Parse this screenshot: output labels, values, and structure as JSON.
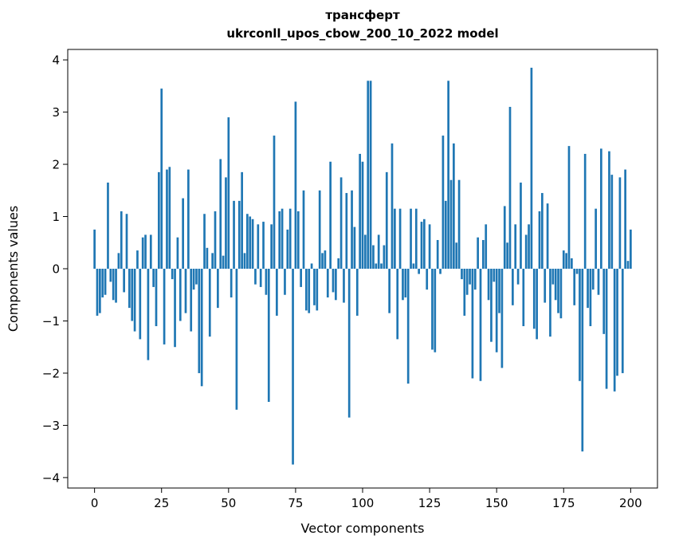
{
  "chart_data": {
    "type": "bar",
    "title": "трансферт",
    "subtitle": "ukrconll_upos_cbow_200_10_2022 model",
    "xlabel": "Vector components",
    "ylabel": "Components values",
    "x_start": 0,
    "values": [
      0.75,
      -0.9,
      -0.85,
      -0.55,
      -0.5,
      1.65,
      -0.25,
      -0.6,
      -0.65,
      0.3,
      1.1,
      -0.45,
      1.05,
      -0.75,
      -1.0,
      -1.2,
      0.35,
      -1.35,
      0.6,
      0.65,
      -1.75,
      0.65,
      -0.35,
      -1.1,
      1.85,
      3.45,
      -1.45,
      1.9,
      1.95,
      -0.2,
      -1.5,
      0.6,
      -1.0,
      1.35,
      -0.85,
      1.9,
      -1.2,
      -0.4,
      -0.3,
      -2.0,
      -2.25,
      1.05,
      0.4,
      -1.3,
      0.3,
      1.1,
      -0.75,
      2.1,
      0.25,
      1.75,
      2.9,
      -0.55,
      1.3,
      -2.7,
      1.3,
      1.85,
      0.3,
      1.05,
      1.0,
      0.95,
      -0.3,
      0.85,
      -0.35,
      0.9,
      -0.5,
      -2.55,
      0.85,
      2.55,
      -0.9,
      1.1,
      1.15,
      -0.5,
      0.75,
      1.15,
      -3.75,
      3.2,
      1.1,
      -0.35,
      1.5,
      -0.8,
      -0.85,
      0.1,
      -0.7,
      -0.8,
      1.5,
      0.3,
      0.35,
      -0.55,
      2.05,
      -0.45,
      -0.6,
      0.2,
      1.75,
      -0.65,
      1.45,
      -2.85,
      1.5,
      0.8,
      -0.9,
      2.2,
      2.05,
      0.65,
      3.6,
      3.6,
      0.45,
      0.1,
      0.65,
      0.1,
      0.45,
      1.85,
      -0.85,
      2.4,
      1.15,
      -1.35,
      1.15,
      -0.6,
      -0.55,
      -2.2,
      1.15,
      0.1,
      1.15,
      -0.1,
      0.9,
      0.95,
      -0.4,
      0.85,
      -1.55,
      -1.6,
      0.55,
      -0.1,
      2.55,
      1.3,
      3.6,
      1.7,
      2.4,
      0.5,
      1.7,
      -0.2,
      -0.9,
      -0.5,
      -0.3,
      -2.1,
      -0.4,
      0.6,
      -2.15,
      0.55,
      0.85,
      -0.6,
      -1.4,
      -0.25,
      -1.6,
      -0.85,
      -1.9,
      1.2,
      0.5,
      3.1,
      -0.7,
      0.85,
      -0.3,
      1.65,
      -1.1,
      0.65,
      0.85,
      3.85,
      -1.15,
      -1.35,
      1.1,
      1.45,
      -0.65,
      1.25,
      -1.3,
      -0.3,
      -0.6,
      -0.85,
      -0.95,
      0.35,
      0.3,
      2.35,
      0.2,
      -0.7,
      -0.1,
      -2.15,
      -3.5,
      2.2,
      -0.75,
      -1.1,
      -0.4,
      1.15,
      -0.5,
      2.3,
      -1.25,
      -2.3,
      2.25,
      1.8,
      -2.35,
      -2.05,
      1.75,
      -2.0,
      1.9,
      0.15,
      0.75
    ],
    "xlim": [
      -10,
      210
    ],
    "ylim": [
      -4.2,
      4.2
    ],
    "xticks": [
      0,
      25,
      50,
      75,
      100,
      125,
      150,
      175,
      200
    ],
    "xtick_labels": [
      "0",
      "25",
      "50",
      "75",
      "100",
      "125",
      "150",
      "175",
      "200"
    ],
    "yticks": [
      -4,
      -3,
      -2,
      -1,
      0,
      1,
      2,
      3,
      4
    ],
    "ytick_labels": [
      "−4",
      "−3",
      "−2",
      "−1",
      "0",
      "1",
      "2",
      "3",
      "4"
    ],
    "bar_color": "#1f77b4",
    "axis_color": "#000000",
    "grid": false,
    "legend": null
  }
}
